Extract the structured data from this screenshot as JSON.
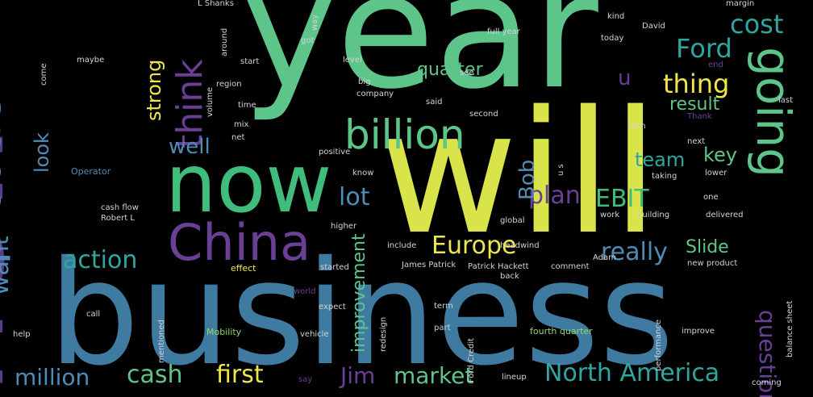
{
  "palette": {
    "teal": "#5ec58a",
    "green": "#40bc7c",
    "lime": "#d8e44a",
    "yellow": "#f0e64c",
    "blue": "#3f7aa0",
    "steel": "#4f8cb5",
    "purple": "#5a3a8a",
    "violet": "#6a3f96",
    "cyan": "#2fa6a0",
    "lightgreen": "#94d46a",
    "grey": "#8a8f9a",
    "lilac": "#9a7ab8"
  },
  "words": [
    {
      "text": "year",
      "color": "teal",
      "orientation": "h"
    },
    {
      "text": "new",
      "color": "purple",
      "orientation": "v"
    },
    {
      "text": "will",
      "color": "lime",
      "orientation": "h"
    },
    {
      "text": "business",
      "color": "blue",
      "orientation": "h"
    },
    {
      "text": "now",
      "color": "green",
      "orientation": "h"
    },
    {
      "text": "China",
      "color": "violet",
      "orientation": "h"
    },
    {
      "text": "going",
      "color": "teal",
      "orientation": "d"
    },
    {
      "text": "product",
      "color": "steel",
      "orientation": "v"
    },
    {
      "text": "billion",
      "color": "teal",
      "orientation": "h"
    },
    {
      "text": "think",
      "color": "violet",
      "orientation": "v"
    },
    {
      "text": "Ford",
      "color": "cyan",
      "orientation": "h"
    },
    {
      "text": "cost",
      "color": "cyan",
      "orientation": "h"
    },
    {
      "text": "thing",
      "color": "yellow",
      "orientation": "h"
    },
    {
      "text": "plan",
      "color": "violet",
      "orientation": "h"
    },
    {
      "text": "EBIT",
      "color": "green",
      "orientation": "h"
    },
    {
      "text": "lot",
      "color": "steel",
      "orientation": "h"
    },
    {
      "text": "Europe",
      "color": "yellow",
      "orientation": "h"
    },
    {
      "text": "really",
      "color": "steel",
      "orientation": "h"
    },
    {
      "text": "action",
      "color": "cyan",
      "orientation": "h"
    },
    {
      "text": "want",
      "color": "steel",
      "orientation": "v"
    },
    {
      "text": "million",
      "color": "steel",
      "orientation": "h"
    },
    {
      "text": "cash",
      "color": "teal",
      "orientation": "h"
    },
    {
      "text": "first",
      "color": "yellow",
      "orientation": "h"
    },
    {
      "text": "Jim",
      "color": "violet",
      "orientation": "h"
    },
    {
      "text": "market",
      "color": "teal",
      "orientation": "h"
    },
    {
      "text": "North America",
      "color": "cyan",
      "orientation": "h"
    },
    {
      "text": "question",
      "color": "violet",
      "orientation": "d"
    },
    {
      "text": "improvement",
      "color": "teal",
      "orientation": "v"
    },
    {
      "text": "Slide",
      "color": "teal",
      "orientation": "h"
    },
    {
      "text": "well",
      "color": "steel",
      "orientation": "h"
    },
    {
      "text": "look",
      "color": "steel",
      "orientation": "v"
    },
    {
      "text": "strong",
      "color": "yellow",
      "orientation": "v"
    },
    {
      "text": "Bob",
      "color": "steel",
      "orientation": "v"
    },
    {
      "text": "team",
      "color": "cyan",
      "orientation": "h"
    },
    {
      "text": "key",
      "color": "teal",
      "orientation": "h"
    },
    {
      "text": "quarter",
      "color": "teal",
      "orientation": "h"
    },
    {
      "text": "result",
      "color": "teal",
      "orientation": "h"
    },
    {
      "text": "u",
      "color": "violet",
      "orientation": "h"
    },
    {
      "text": "cash flow",
      "color": "grey",
      "orientation": "h"
    },
    {
      "text": "Robert L",
      "color": "grey",
      "orientation": "h"
    },
    {
      "text": "Operator",
      "color": "steel",
      "orientation": "h"
    },
    {
      "text": "mix",
      "color": "grey",
      "orientation": "h"
    },
    {
      "text": "net",
      "color": "grey",
      "orientation": "h"
    },
    {
      "text": "region",
      "color": "grey",
      "orientation": "h"
    },
    {
      "text": "maybe",
      "color": "grey",
      "orientation": "h"
    },
    {
      "text": "time",
      "color": "grey",
      "orientation": "h"
    },
    {
      "text": "start",
      "color": "grey",
      "orientation": "h"
    },
    {
      "text": "got",
      "color": "grey",
      "orientation": "h"
    },
    {
      "text": "level",
      "color": "grey",
      "orientation": "h"
    },
    {
      "text": "big",
      "color": "grey",
      "orientation": "h"
    },
    {
      "text": "company",
      "color": "grey",
      "orientation": "h"
    },
    {
      "text": "said",
      "color": "grey",
      "orientation": "h"
    },
    {
      "text": "see",
      "color": "grey",
      "orientation": "h"
    },
    {
      "text": "second",
      "color": "grey",
      "orientation": "h"
    },
    {
      "text": "positive",
      "color": "grey",
      "orientation": "h"
    },
    {
      "text": "know",
      "color": "grey",
      "orientation": "h"
    },
    {
      "text": "global",
      "color": "grey",
      "orientation": "h"
    },
    {
      "text": "include",
      "color": "grey",
      "orientation": "h"
    },
    {
      "text": "headwind",
      "color": "grey",
      "orientation": "h"
    },
    {
      "text": "James Patrick",
      "color": "grey",
      "orientation": "h"
    },
    {
      "text": "Patrick Hackett",
      "color": "grey",
      "orientation": "h"
    },
    {
      "text": "comment",
      "color": "grey",
      "orientation": "h"
    },
    {
      "text": "started",
      "color": "grey",
      "orientation": "h"
    },
    {
      "text": "effect",
      "color": "yellow",
      "orientation": "h"
    },
    {
      "text": "world",
      "color": "violet",
      "orientation": "h"
    },
    {
      "text": "back",
      "color": "grey",
      "orientation": "h"
    },
    {
      "text": "expect",
      "color": "grey",
      "orientation": "h"
    },
    {
      "text": "call",
      "color": "grey",
      "orientation": "h"
    },
    {
      "text": "term",
      "color": "grey",
      "orientation": "h"
    },
    {
      "text": "help",
      "color": "grey",
      "orientation": "h"
    },
    {
      "text": "Mobility",
      "color": "lightgreen",
      "orientation": "h"
    },
    {
      "text": "vehicle",
      "color": "grey",
      "orientation": "h"
    },
    {
      "text": "part",
      "color": "grey",
      "orientation": "h"
    },
    {
      "text": "fourth quarter",
      "color": "lightgreen",
      "orientation": "h"
    },
    {
      "text": "lineup",
      "color": "grey",
      "orientation": "h"
    },
    {
      "text": "full year",
      "color": "grey",
      "orientation": "h"
    },
    {
      "text": "kind",
      "color": "grey",
      "orientation": "h"
    },
    {
      "text": "today",
      "color": "grey",
      "orientation": "h"
    },
    {
      "text": "David",
      "color": "grey",
      "orientation": "h"
    },
    {
      "text": "margin",
      "color": "grey",
      "orientation": "h"
    },
    {
      "text": "last",
      "color": "grey",
      "orientation": "h"
    },
    {
      "text": "turn",
      "color": "grey",
      "orientation": "h"
    },
    {
      "text": "next",
      "color": "grey",
      "orientation": "h"
    },
    {
      "text": "taking",
      "color": "grey",
      "orientation": "h"
    },
    {
      "text": "lower",
      "color": "grey",
      "orientation": "h"
    },
    {
      "text": "one",
      "color": "grey",
      "orientation": "h"
    },
    {
      "text": "work",
      "color": "grey",
      "orientation": "h"
    },
    {
      "text": "building",
      "color": "grey",
      "orientation": "h"
    },
    {
      "text": "delivered",
      "color": "grey",
      "orientation": "h"
    },
    {
      "text": "higher",
      "color": "grey",
      "orientation": "h"
    },
    {
      "text": "Adam",
      "color": "grey",
      "orientation": "h"
    },
    {
      "text": "new product",
      "color": "grey",
      "orientation": "h"
    },
    {
      "text": "improve",
      "color": "grey",
      "orientation": "h"
    },
    {
      "text": "Thank",
      "color": "violet",
      "orientation": "h"
    },
    {
      "text": "end",
      "color": "violet",
      "orientation": "h"
    },
    {
      "text": "coming",
      "color": "grey",
      "orientation": "h"
    },
    {
      "text": "balance sheet",
      "color": "grey",
      "orientation": "v"
    },
    {
      "text": "performance",
      "color": "grey",
      "orientation": "v"
    },
    {
      "text": "Ford Credit",
      "color": "grey",
      "orientation": "v"
    },
    {
      "text": "redesign",
      "color": "grey",
      "orientation": "v"
    },
    {
      "text": "mentioned",
      "color": "grey",
      "orientation": "v"
    },
    {
      "text": "L Shanks",
      "color": "grey",
      "orientation": "h"
    },
    {
      "text": "volume",
      "color": "grey",
      "orientation": "v"
    },
    {
      "text": "around",
      "color": "grey",
      "orientation": "v"
    },
    {
      "text": "come",
      "color": "grey",
      "orientation": "v"
    },
    {
      "text": "way",
      "color": "grey",
      "orientation": "v"
    },
    {
      "text": "u s",
      "color": "grey",
      "orientation": "v"
    },
    {
      "text": "say",
      "color": "violet",
      "orientation": "h"
    }
  ]
}
